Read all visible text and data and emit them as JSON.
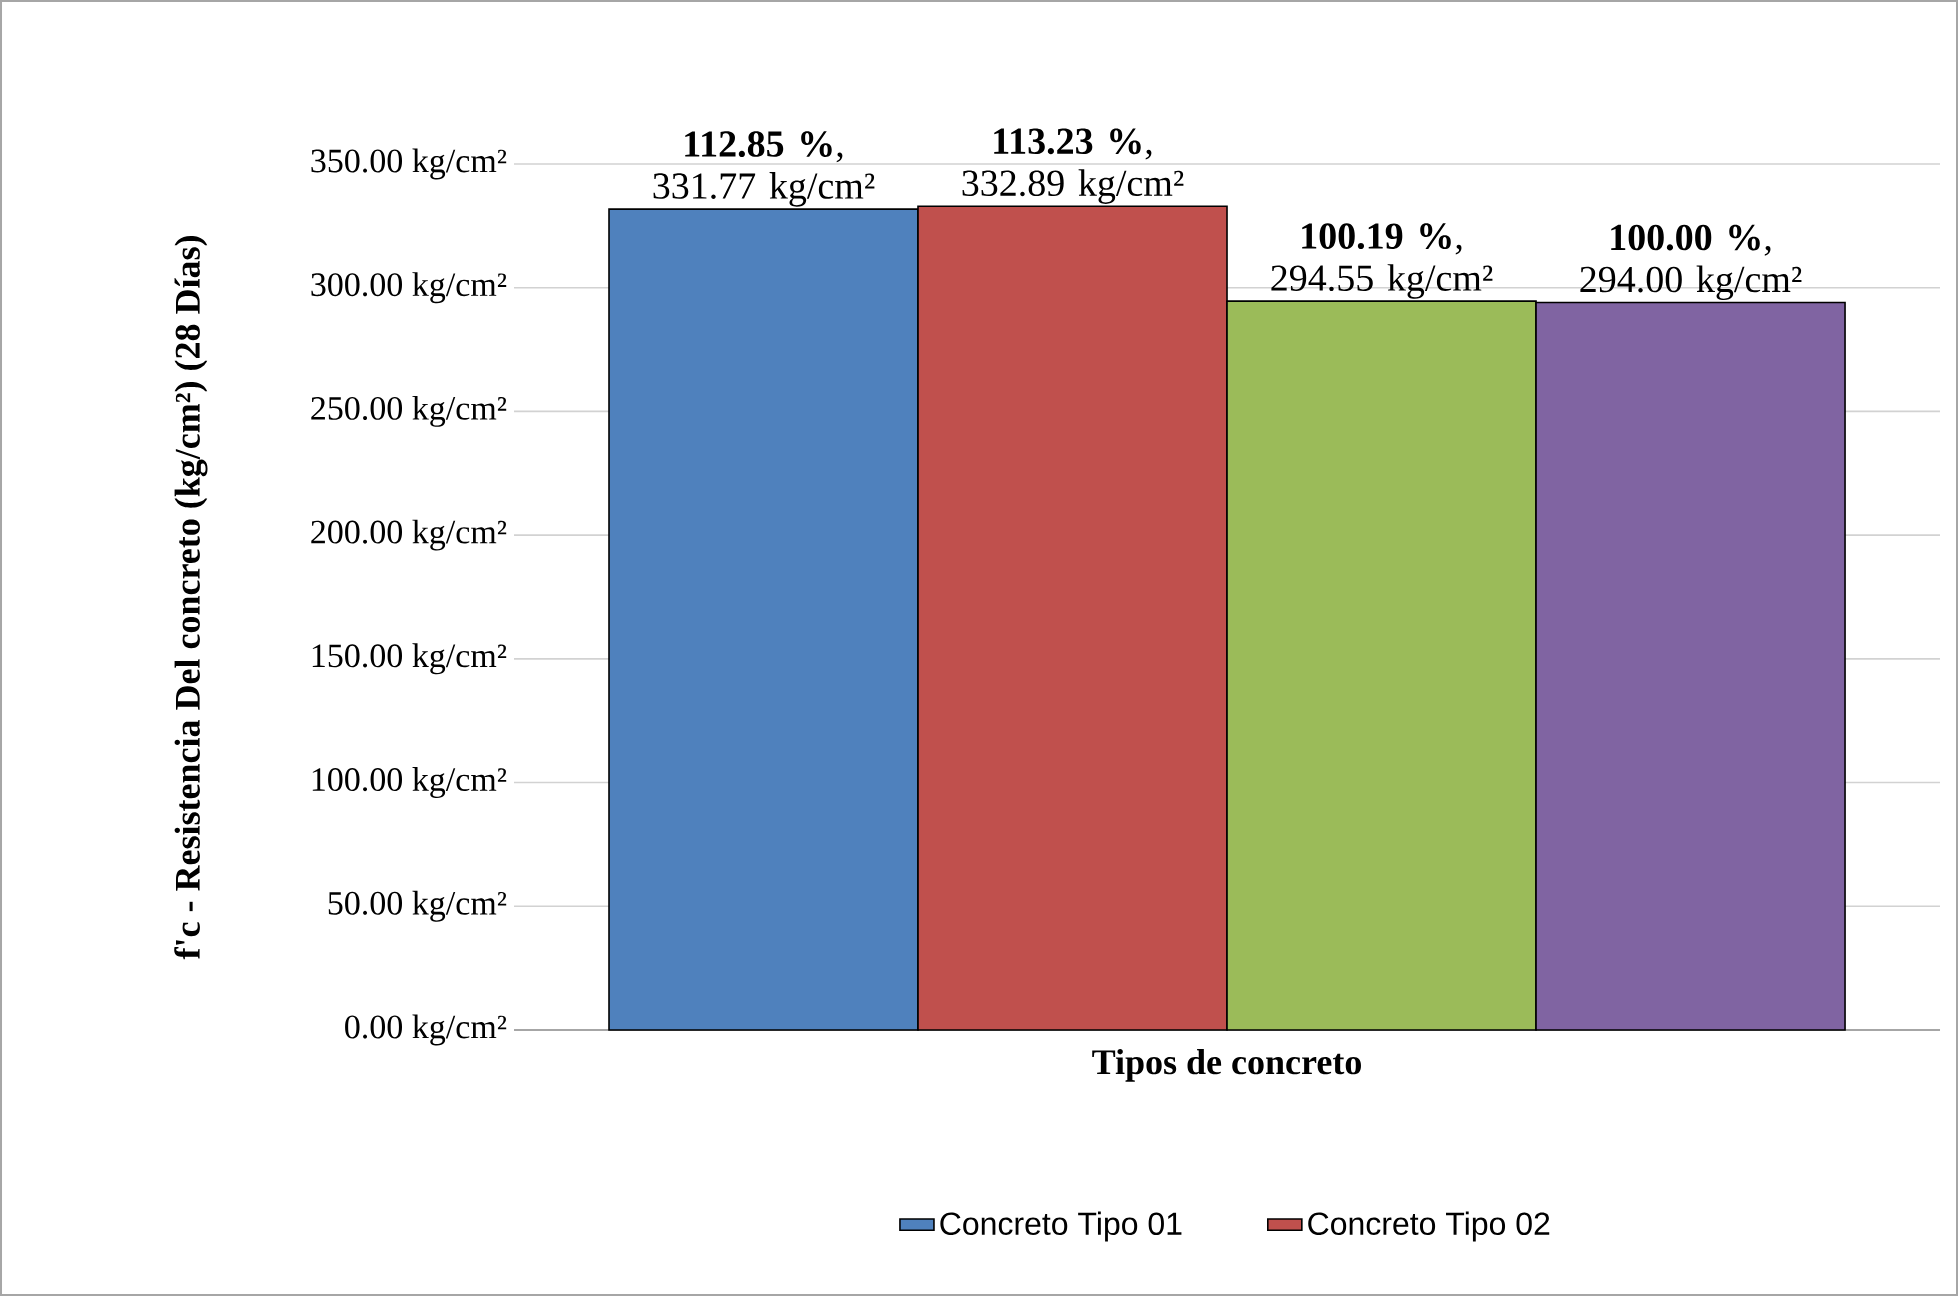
{
  "chart_data": {
    "type": "bar",
    "xlabel": "Tipos de concreto",
    "ylabel": "f'c - Resistencia Del concreto (kg/cm²) (28 Días)",
    "categories": [
      null
    ],
    "series": [
      {
        "name": "Concreto Tipo 01",
        "color": "#4f81bd",
        "values": [
          331.77
        ],
        "value_labels": [
          "**112.85 %**, 331.77 kg/cm²"
        ]
      },
      {
        "name": "Concreto Tipo 02",
        "color": "#c0504d",
        "values": [
          332.89
        ],
        "value_labels": [
          "**113.23 %**, 332.89 kg/cm²"
        ]
      },
      {
        "color": "#9bbb59",
        "values": [
          294.55
        ],
        "value_labels": [
          "**100.19 %**, 294.55 kg/cm²"
        ]
      },
      {
        "color": "#8064a2",
        "values": [
          294.0
        ],
        "value_labels": [
          "**100.00 %**, 294.00 kg/cm²"
        ]
      }
    ],
    "ylim": [
      0,
      350
    ],
    "yticks": [
      {
        "value": 0,
        "label": "0.00 kg/cm²"
      },
      {
        "value": 50,
        "label": "50.00 kg/cm²"
      },
      {
        "value": 100,
        "label": "100.00 kg/cm²"
      },
      {
        "value": 150,
        "label": "150.00 kg/cm²"
      },
      {
        "value": 200,
        "label": "200.00 kg/cm²"
      },
      {
        "value": 250,
        "label": "250.00 kg/cm²"
      },
      {
        "value": 300,
        "label": "300.00 kg/cm²"
      },
      {
        "value": 350,
        "label": "350.00 kg/cm²"
      }
    ],
    "grid": "y",
    "legend": "bottom"
  }
}
